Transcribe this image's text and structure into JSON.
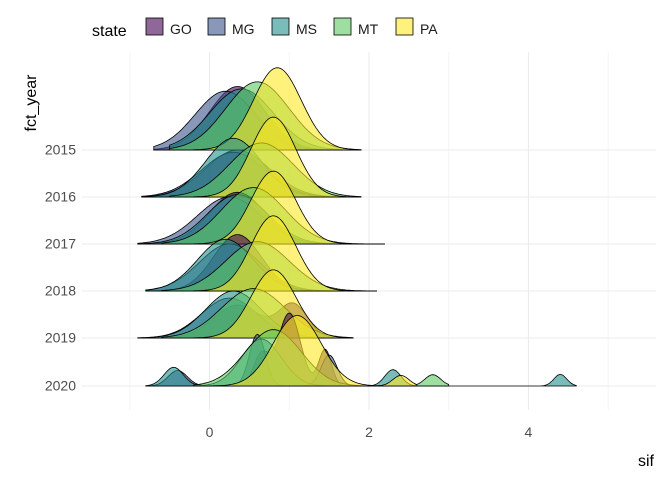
{
  "chart_data": {
    "type": "area",
    "subtype": "ridgeline",
    "xlabel": "sif",
    "ylabel": "fct_year",
    "xlim": [
      -1.6,
      5.6
    ],
    "x_ticks": [
      0,
      2,
      4
    ],
    "x_tick_labels": [
      "0",
      "2",
      "4"
    ],
    "categories": [
      "2015",
      "2016",
      "2017",
      "2018",
      "2019",
      "2020"
    ],
    "legend": {
      "title": "state",
      "position": "top",
      "items": [
        {
          "name": "GO",
          "color": "#440154"
        },
        {
          "name": "MG",
          "color": "#3B528B"
        },
        {
          "name": "MS",
          "color": "#21908C"
        },
        {
          "name": "MT",
          "color": "#5DC863"
        },
        {
          "name": "PA",
          "color": "#FDE725"
        }
      ]
    },
    "grid": true,
    "series": [
      {
        "year": "2015",
        "state": "GO",
        "components": [
          {
            "mu": 0.35,
            "sd": 0.35,
            "w": 1
          }
        ],
        "peak": 1.35,
        "range": [
          -0.7,
          1.9
        ]
      },
      {
        "year": "2015",
        "state": "MG",
        "components": [
          {
            "mu": 0.2,
            "sd": 0.38,
            "w": 1
          }
        ],
        "peak": 1.25,
        "range": [
          -0.7,
          1.9
        ]
      },
      {
        "year": "2015",
        "state": "MS",
        "components": [
          {
            "mu": 0.4,
            "sd": 0.4,
            "w": 1
          }
        ],
        "peak": 1.3,
        "range": [
          -0.5,
          1.9
        ]
      },
      {
        "year": "2015",
        "state": "MT",
        "components": [
          {
            "mu": 0.6,
            "sd": 0.4,
            "w": 1
          }
        ],
        "peak": 1.45,
        "range": [
          -0.5,
          1.9
        ]
      },
      {
        "year": "2015",
        "state": "PA",
        "components": [
          {
            "mu": 0.85,
            "sd": 0.3,
            "w": 1
          }
        ],
        "peak": 1.75,
        "range": [
          -0.2,
          1.9
        ]
      },
      {
        "year": "2016",
        "state": "GO",
        "components": [
          {
            "mu": 0.35,
            "sd": 0.4,
            "w": 1
          }
        ],
        "peak": 1.0,
        "range": [
          -0.85,
          1.9
        ]
      },
      {
        "year": "2016",
        "state": "MG",
        "components": [
          {
            "mu": 0.3,
            "sd": 0.4,
            "w": 1
          }
        ],
        "peak": 0.95,
        "range": [
          -0.85,
          1.9
        ]
      },
      {
        "year": "2016",
        "state": "MS",
        "components": [
          {
            "mu": 0.3,
            "sd": 0.35,
            "w": 1
          }
        ],
        "peak": 1.25,
        "range": [
          -0.85,
          1.8
        ]
      },
      {
        "year": "2016",
        "state": "MT",
        "components": [
          {
            "mu": 0.65,
            "sd": 0.4,
            "w": 1
          }
        ],
        "peak": 1.15,
        "range": [
          -0.5,
          1.9
        ]
      },
      {
        "year": "2016",
        "state": "PA",
        "components": [
          {
            "mu": 0.8,
            "sd": 0.28,
            "w": 1
          }
        ],
        "peak": 1.7,
        "range": [
          -0.2,
          1.8
        ]
      },
      {
        "year": "2017",
        "state": "GO",
        "components": [
          {
            "mu": 0.35,
            "sd": 0.35,
            "w": 1
          }
        ],
        "peak": 1.1,
        "range": [
          -0.9,
          2.2
        ]
      },
      {
        "year": "2017",
        "state": "MG",
        "components": [
          {
            "mu": 0.25,
            "sd": 0.4,
            "w": 1
          }
        ],
        "peak": 1.0,
        "range": [
          -0.9,
          2.2
        ]
      },
      {
        "year": "2017",
        "state": "MS",
        "components": [
          {
            "mu": 0.35,
            "sd": 0.38,
            "w": 1
          }
        ],
        "peak": 1.05,
        "range": [
          -0.9,
          1.9
        ]
      },
      {
        "year": "2017",
        "state": "MT",
        "components": [
          {
            "mu": 0.55,
            "sd": 0.4,
            "w": 1
          }
        ],
        "peak": 1.2,
        "range": [
          -0.6,
          2.2
        ]
      },
      {
        "year": "2017",
        "state": "PA",
        "components": [
          {
            "mu": 0.8,
            "sd": 0.28,
            "w": 1
          }
        ],
        "peak": 1.55,
        "range": [
          -0.2,
          1.9
        ]
      },
      {
        "year": "2018",
        "state": "GO",
        "components": [
          {
            "mu": 0.35,
            "sd": 0.3,
            "w": 1
          }
        ],
        "peak": 1.2,
        "range": [
          -0.8,
          2.1
        ]
      },
      {
        "year": "2018",
        "state": "MG",
        "components": [
          {
            "mu": 0.25,
            "sd": 0.38,
            "w": 1
          }
        ],
        "peak": 1.0,
        "range": [
          -0.8,
          2.1
        ]
      },
      {
        "year": "2018",
        "state": "MS",
        "components": [
          {
            "mu": 0.2,
            "sd": 0.35,
            "w": 1
          }
        ],
        "peak": 1.1,
        "range": [
          -0.8,
          2.1
        ]
      },
      {
        "year": "2018",
        "state": "MT",
        "components": [
          {
            "mu": 0.6,
            "sd": 0.4,
            "w": 1
          }
        ],
        "peak": 1.05,
        "range": [
          -0.6,
          2.1
        ]
      },
      {
        "year": "2018",
        "state": "PA",
        "components": [
          {
            "mu": 0.8,
            "sd": 0.28,
            "w": 1
          }
        ],
        "peak": 1.6,
        "range": [
          -0.2,
          1.9
        ]
      },
      {
        "year": "2019",
        "state": "GO",
        "components": [
          {
            "mu": 0.35,
            "sd": 0.3,
            "w": 0.5
          },
          {
            "mu": 1.05,
            "sd": 0.18,
            "w": 0.5
          }
        ],
        "peak": 0.75,
        "range": [
          -0.9,
          1.8
        ]
      },
      {
        "year": "2019",
        "state": "MG",
        "components": [
          {
            "mu": 0.25,
            "sd": 0.35,
            "w": 1
          }
        ],
        "peak": 0.85,
        "range": [
          -0.9,
          1.8
        ]
      },
      {
        "year": "2019",
        "state": "MS",
        "components": [
          {
            "mu": 0.3,
            "sd": 0.35,
            "w": 1
          }
        ],
        "peak": 1.0,
        "range": [
          -0.9,
          1.8
        ]
      },
      {
        "year": "2019",
        "state": "MT",
        "components": [
          {
            "mu": 0.55,
            "sd": 0.4,
            "w": 1
          }
        ],
        "peak": 1.05,
        "range": [
          -0.6,
          1.8
        ]
      },
      {
        "year": "2019",
        "state": "PA",
        "components": [
          {
            "mu": 0.8,
            "sd": 0.28,
            "w": 1
          }
        ],
        "peak": 1.45,
        "range": [
          -0.2,
          1.8
        ]
      },
      {
        "year": "2020",
        "state": "GO",
        "components": [
          {
            "mu": 1.0,
            "sd": 0.14,
            "w": 0.7
          },
          {
            "mu": 0.65,
            "sd": 0.1,
            "w": 0.3
          },
          {
            "mu": 1.45,
            "sd": 0.08,
            "w": 0.35
          }
        ],
        "peak": 1.55,
        "range": [
          -0.1,
          1.8
        ]
      },
      {
        "year": "2020",
        "state": "MG",
        "components": [
          {
            "mu": 0.6,
            "sd": 0.1,
            "w": 1
          },
          {
            "mu": 1.5,
            "sd": 0.1,
            "w": 0.6
          },
          {
            "mu": -0.4,
            "sd": 0.12,
            "w": 0.3
          }
        ],
        "peak": 1.1,
        "range": [
          -0.8,
          1.9
        ]
      },
      {
        "year": "2020",
        "state": "MS",
        "components": [
          {
            "mu": 0.65,
            "sd": 0.25,
            "w": 1
          },
          {
            "mu": -0.45,
            "sd": 0.12,
            "w": 0.4
          },
          {
            "mu": 2.3,
            "sd": 0.1,
            "w": 0.35
          },
          {
            "mu": 4.4,
            "sd": 0.08,
            "w": 0.25
          }
        ],
        "peak": 1.0,
        "range": [
          -0.8,
          4.6
        ]
      },
      {
        "year": "2020",
        "state": "MT",
        "components": [
          {
            "mu": 0.8,
            "sd": 0.35,
            "w": 1
          },
          {
            "mu": 2.8,
            "sd": 0.1,
            "w": 0.2
          }
        ],
        "peak": 1.2,
        "range": [
          -0.2,
          3.0
        ]
      },
      {
        "year": "2020",
        "state": "PA",
        "components": [
          {
            "mu": 1.1,
            "sd": 0.3,
            "w": 1
          },
          {
            "mu": 2.4,
            "sd": 0.1,
            "w": 0.15
          }
        ],
        "peak": 1.5,
        "range": [
          0.0,
          2.6
        ]
      }
    ]
  }
}
